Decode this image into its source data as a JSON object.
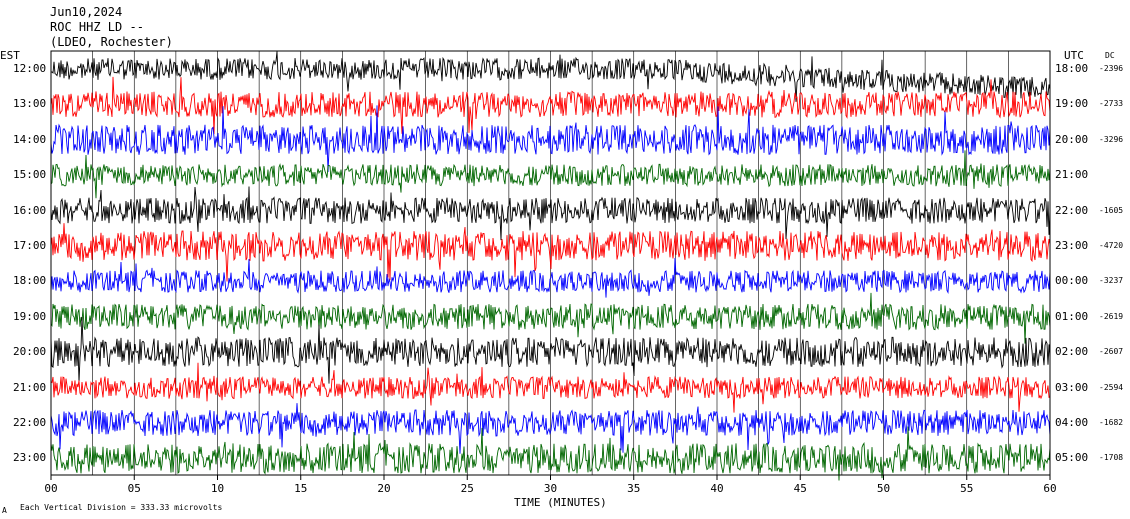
{
  "header": {
    "line1": "Jun10,2024",
    "line2": "ROC HHZ LD --",
    "line3": "(LDEO, Rochester)"
  },
  "left_axis_title": "EST",
  "right_axis_title": "UTC",
  "dc_title": "DC",
  "footer": {
    "scale_prefix": "A",
    "scale_note": "Each Vertical Division = 333.33 microvolts"
  },
  "chart_data": {
    "type": "line",
    "title": "Jun10,2024 ROC HHZ LD -- (LDEO, Rochester)",
    "xlabel": "TIME (MINUTES)",
    "xlim": [
      0,
      60
    ],
    "x_ticks": [
      "00",
      "05",
      "10",
      "15",
      "20",
      "25",
      "30",
      "35",
      "40",
      "45",
      "50",
      "55",
      "60"
    ],
    "vertical_grid_minutes": [
      2.5,
      5,
      7.5,
      10,
      12.5,
      15,
      17.5,
      20,
      22.5,
      25,
      27.5,
      30,
      32.5,
      35,
      37.5,
      40,
      42.5,
      45,
      47.5,
      50,
      52.5,
      55,
      57.5
    ],
    "row_colors": [
      "#000000",
      "#ff0000",
      "#0000ff",
      "#006600"
    ],
    "rows": [
      {
        "est": "12:00",
        "utc": "18:00",
        "dc": "-2396"
      },
      {
        "est": "13:00",
        "utc": "19:00",
        "dc": "-2733"
      },
      {
        "est": "14:00",
        "utc": "20:00",
        "dc": "-3296"
      },
      {
        "est": "15:00",
        "utc": "21:00",
        "dc": ""
      },
      {
        "est": "16:00",
        "utc": "22:00",
        "dc": "-1605"
      },
      {
        "est": "17:00",
        "utc": "23:00",
        "dc": "-4720"
      },
      {
        "est": "18:00",
        "utc": "00:00",
        "dc": "-3237"
      },
      {
        "est": "19:00",
        "utc": "01:00",
        "dc": "-2619"
      },
      {
        "est": "20:00",
        "utc": "02:00",
        "dc": "-2607"
      },
      {
        "est": "21:00",
        "utc": "03:00",
        "dc": "-2594"
      },
      {
        "est": "22:00",
        "utc": "04:00",
        "dc": "-1682"
      },
      {
        "est": "23:00",
        "utc": "05:00",
        "dc": "-1708"
      }
    ]
  }
}
